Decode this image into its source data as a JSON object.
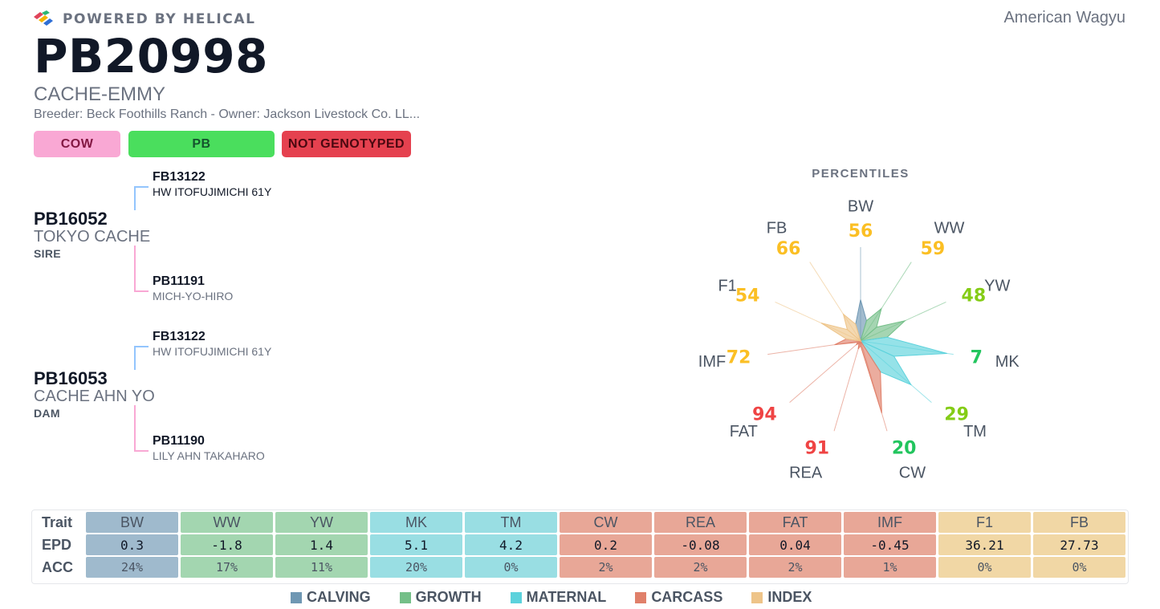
{
  "header": {
    "powered_by": "POWERED BY HELICAL",
    "breed": "American Wagyu",
    "registration": "PB20998",
    "name": "CACHE-EMMY",
    "breeder_line": "Breeder: Beck Foothills Ranch - Owner: Jackson Livestock Co. LL..."
  },
  "badges": {
    "sex": "COW",
    "category": "PB",
    "genotype": "NOT GENOTYPED"
  },
  "pedigree": {
    "sire": {
      "reg": "PB16052",
      "name": "TOKYO CACHE",
      "role": "SIRE",
      "sire": {
        "reg": "FB13122",
        "name": "HW ITOFUJIMICHI 61Y"
      },
      "dam": {
        "reg": "PB11191",
        "name": "MICH-YO-HIRO"
      }
    },
    "dam": {
      "reg": "PB16053",
      "name": "CACHE AHN YO",
      "role": "DAM",
      "sire": {
        "reg": "FB13122",
        "name": "HW ITOFUJIMICHI 61Y"
      },
      "dam": {
        "reg": "PB11190",
        "name": "LILY AHN TAKAHARO"
      }
    }
  },
  "percentiles": {
    "title": "PERCENTILES",
    "traits": [
      {
        "trait": "BW",
        "value": 56,
        "group": "calving"
      },
      {
        "trait": "WW",
        "value": 59,
        "group": "growth"
      },
      {
        "trait": "YW",
        "value": 48,
        "group": "growth"
      },
      {
        "trait": "MK",
        "value": 7,
        "group": "maternal"
      },
      {
        "trait": "TM",
        "value": 29,
        "group": "maternal"
      },
      {
        "trait": "CW",
        "value": 20,
        "group": "carcass"
      },
      {
        "trait": "REA",
        "value": 91,
        "group": "carcass"
      },
      {
        "trait": "FAT",
        "value": 94,
        "group": "carcass"
      },
      {
        "trait": "IMF",
        "value": 72,
        "group": "carcass"
      },
      {
        "trait": "F1",
        "value": 54,
        "group": "index"
      },
      {
        "trait": "FB",
        "value": 66,
        "group": "index"
      }
    ],
    "value_colors": {
      "good": "#22c55e",
      "fair": "#84cc16",
      "mid": "#fbbf24",
      "poor": "#ef4444"
    }
  },
  "epd_table": {
    "row_labels": [
      "Trait",
      "EPD",
      "ACC"
    ],
    "columns": [
      {
        "trait": "BW",
        "epd": "0.3",
        "acc": "24%",
        "group": "calving"
      },
      {
        "trait": "WW",
        "epd": "-1.8",
        "acc": "17%",
        "group": "growth"
      },
      {
        "trait": "YW",
        "epd": "1.4",
        "acc": "11%",
        "group": "growth"
      },
      {
        "trait": "MK",
        "epd": "5.1",
        "acc": "20%",
        "group": "maternal"
      },
      {
        "trait": "TM",
        "epd": "4.2",
        "acc": "0%",
        "group": "maternal"
      },
      {
        "trait": "CW",
        "epd": "0.2",
        "acc": "2%",
        "group": "carcass"
      },
      {
        "trait": "REA",
        "epd": "-0.08",
        "acc": "2%",
        "group": "carcass"
      },
      {
        "trait": "FAT",
        "epd": "0.04",
        "acc": "2%",
        "group": "carcass"
      },
      {
        "trait": "IMF",
        "epd": "-0.45",
        "acc": "1%",
        "group": "carcass"
      },
      {
        "trait": "F1",
        "epd": "36.21",
        "acc": "0%",
        "group": "index"
      },
      {
        "trait": "FB",
        "epd": "27.73",
        "acc": "0%",
        "group": "index"
      }
    ]
  },
  "legend": [
    {
      "label": "CALVING",
      "group": "calving"
    },
    {
      "label": "GROWTH",
      "group": "growth"
    },
    {
      "label": "MATERNAL",
      "group": "maternal"
    },
    {
      "label": "CARCASS",
      "group": "carcass"
    },
    {
      "label": "INDEX",
      "group": "index"
    }
  ],
  "group_colors": {
    "calving": {
      "cell": "#9fbacd",
      "swatch": "#6f97b3",
      "fill": "#6f97b3"
    },
    "growth": {
      "cell": "#a3d6b0",
      "swatch": "#74bf88",
      "fill": "#74bf88"
    },
    "maternal": {
      "cell": "#99dee3",
      "swatch": "#5cd2dc",
      "fill": "#5cd2dc"
    },
    "carcass": {
      "cell": "#e8a797",
      "swatch": "#e0806a",
      "fill": "#e0806a"
    },
    "index": {
      "cell": "#f1d7a5",
      "swatch": "#eec489",
      "fill": "#eec489"
    }
  }
}
